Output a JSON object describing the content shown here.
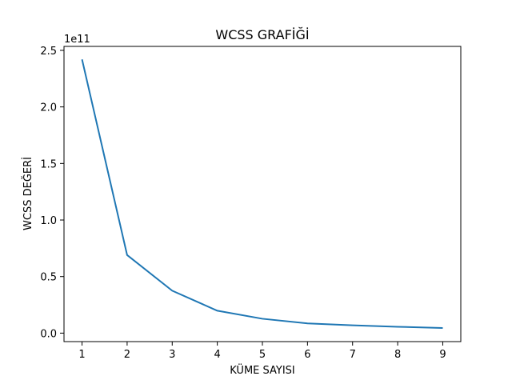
{
  "chart_data": {
    "type": "line",
    "title": "WCSS GRAFİĞİ",
    "xlabel": "KÜME SAYISI",
    "ylabel": "WCSS DEĞERİ",
    "y_offset_label": "1e11",
    "x": [
      1,
      2,
      3,
      4,
      5,
      6,
      7,
      8,
      9
    ],
    "series": [
      {
        "values": [
          242000000000,
          69000000000,
          37500000000,
          19800000000,
          12700000000,
          8600000000,
          6900000000,
          5600000000,
          4500000000
        ]
      }
    ],
    "xlim": [
      0.6,
      9.4
    ],
    "ylim": [
      -7500000000,
      253500000000
    ],
    "x_ticks": [
      1,
      2,
      3,
      4,
      5,
      6,
      7,
      8,
      9
    ],
    "x_tick_labels": [
      "1",
      "2",
      "3",
      "4",
      "5",
      "6",
      "7",
      "8",
      "9"
    ],
    "y_ticks": [
      0,
      50000000000,
      100000000000,
      150000000000,
      200000000000,
      250000000000
    ],
    "y_tick_labels": [
      "0.0",
      "0.5",
      "1.0",
      "1.5",
      "2.0",
      "2.5"
    ],
    "grid": false,
    "line_color": "#1f77b4"
  }
}
